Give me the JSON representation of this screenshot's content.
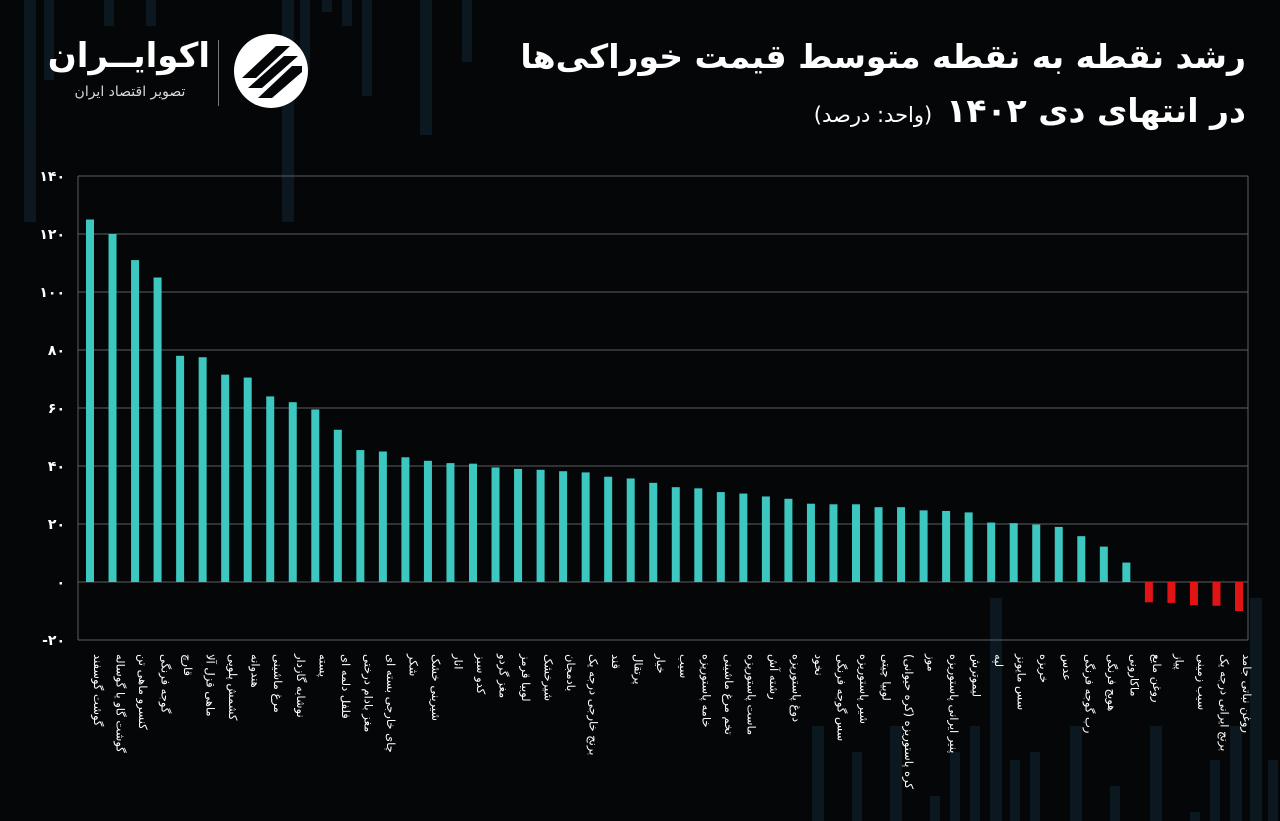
{
  "brand": {
    "name": "اکوایــران",
    "tagline": "تصویر اقتصاد ایران"
  },
  "title": {
    "line1": "رشد نقطه به نقطه متوسط قیمت خوراکی‌ها",
    "line2": "در انتهای دی ۱۴۰۲",
    "unit": "(واحد: درصد)"
  },
  "colors": {
    "background": "#050607",
    "positive": "#3cc8c0",
    "negative": "#e01414",
    "grid": "#5a5f63"
  },
  "chart_data": {
    "type": "bar",
    "title": "رشد نقطه به نقطه متوسط قیمت خوراکی‌ها در انتهای دی ۱۴۰۲",
    "ylabel": "",
    "xlabel": "",
    "ylim": [
      -20,
      140
    ],
    "yticks": [
      -20,
      0,
      20,
      40,
      60,
      80,
      100,
      120,
      140
    ],
    "ytick_labels": [
      "-۲۰",
      "۰",
      "۲۰",
      "۴۰",
      "۶۰",
      "۸۰",
      "۱۰۰",
      "۱۲۰",
      "۱۴۰"
    ],
    "grid": true,
    "categories": [
      "گوشت گوسفند",
      "گوشت گاو یا گوساله",
      "کنسرو ماهی تن",
      "گوجه فرنگی",
      "قارچ",
      "ماهی قزل آلا",
      "کشمش پلویی",
      "هندوانه",
      "مرغ ماشینی",
      "نوشابه گازدار",
      "پسته",
      "فلفل دلمه ای",
      "مغز بادام درختی",
      "چای خارجی بسته ای",
      "شکر",
      "شیرینی خشک",
      "انار",
      "کدو سبز",
      "مغز گردو",
      "لوبیا قرمز",
      "شیرخشک",
      "بادمجان",
      "برنج خارجی درجه یک",
      "قند",
      "پرتقال",
      "خیار",
      "سیب",
      "خامه پاستوریزه",
      "تخم مرغ ماشینی",
      "ماست پاستوریزه",
      "رشته آش",
      "دوغ پاستوریزه",
      "نخود",
      "سس گوجه فرنگی",
      "شیر پاستوریزه",
      "لوبیا چیتی",
      "کره پاستوریزه (کره حیوانی)",
      "موز",
      "پنیر ایرانی پاستوریزه",
      "لیموترش",
      "لپه",
      "سس مایونز",
      "خربزه",
      "عدس",
      "رب گوجه فرنگی",
      "هویج فرنگی",
      "ماکارونی",
      "روغن مایع",
      "پیاز",
      "سیب زمینی",
      "برنج ایرانی درجه یک",
      "روغن نباتی جامد"
    ],
    "values": [
      125,
      120,
      111,
      105,
      78,
      77.5,
      71.5,
      70.5,
      64,
      62,
      59.5,
      52.5,
      45.5,
      45,
      43,
      41.8,
      41,
      40.8,
      39.5,
      39,
      38.7,
      38.2,
      37.8,
      36.3,
      35.7,
      34.2,
      32.7,
      32.3,
      31,
      30.5,
      29.5,
      28.7,
      27,
      26.8,
      26.8,
      25.8,
      25.8,
      24.7,
      24.5,
      24,
      20.5,
      20.3,
      19.8,
      19,
      15.8,
      12.2,
      6.7,
      -7,
      -7.2,
      -8,
      -8.2,
      -10
    ]
  }
}
